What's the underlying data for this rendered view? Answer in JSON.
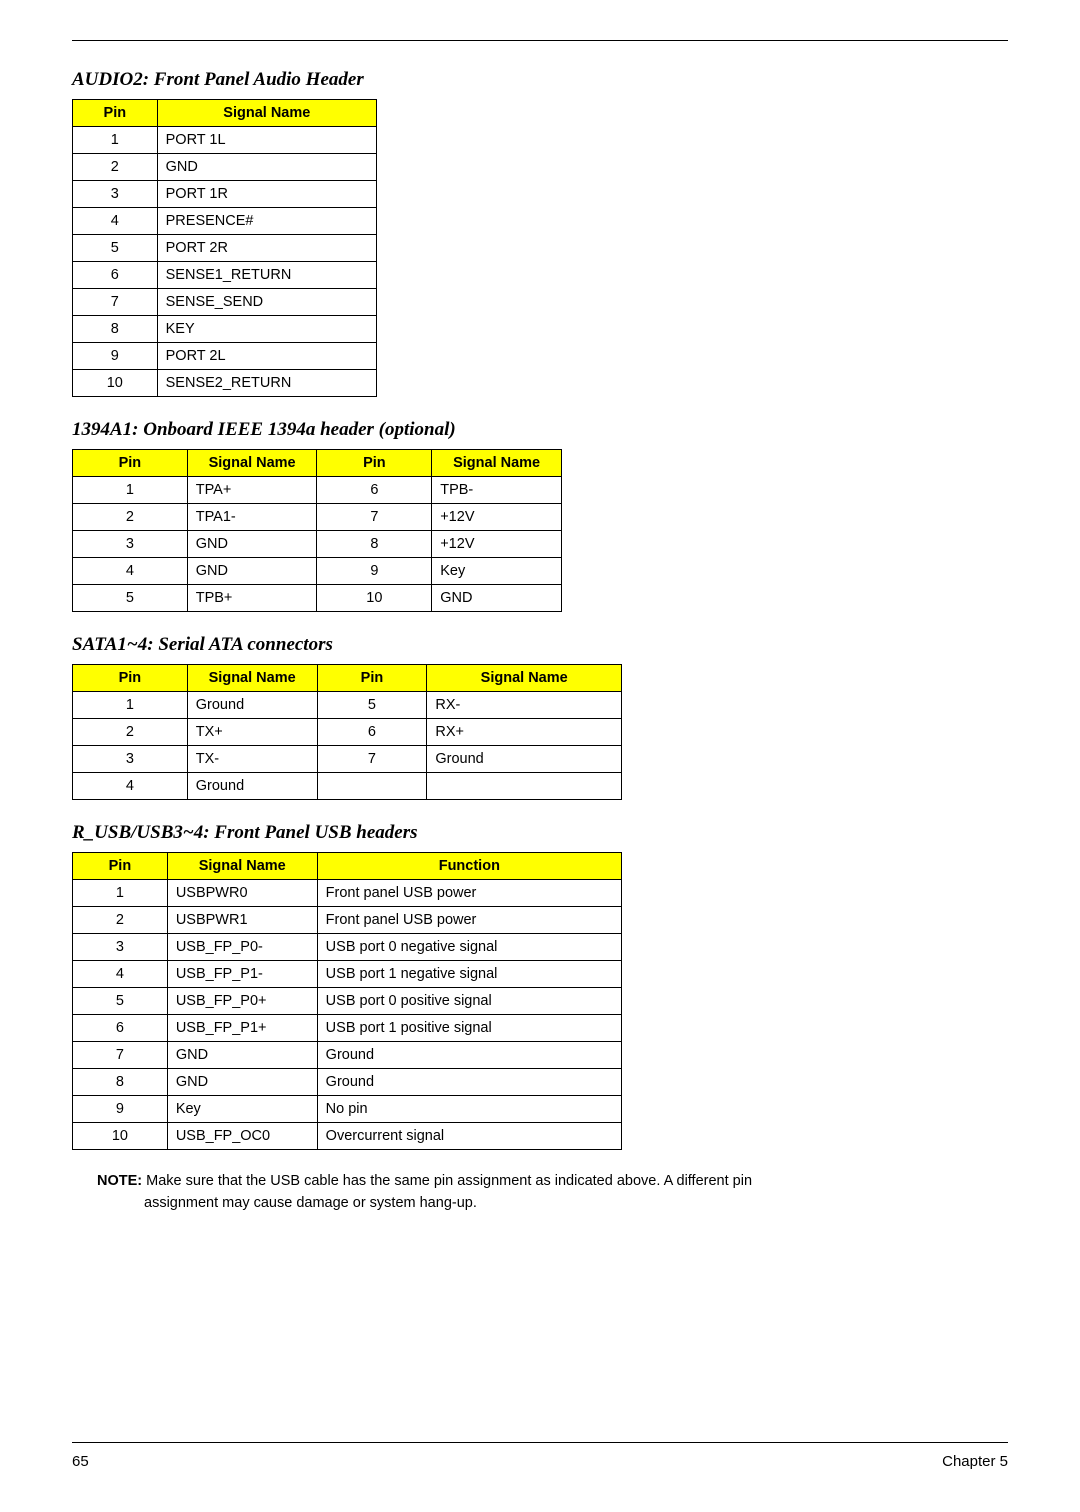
{
  "colors": {
    "header_bg": "#ffff00",
    "border": "#000000",
    "text": "#000000",
    "background": "#ffffff"
  },
  "sections": {
    "audio2": {
      "title": "AUDIO2: Front Panel Audio Header",
      "columns": [
        "Pin",
        "Signal Name"
      ],
      "rows": [
        {
          "pin": "1",
          "signal": "PORT 1L"
        },
        {
          "pin": "2",
          "signal": "GND"
        },
        {
          "pin": "3",
          "signal": "PORT 1R"
        },
        {
          "pin": "4",
          "signal": "PRESENCE#"
        },
        {
          "pin": "5",
          "signal": "PORT 2R"
        },
        {
          "pin": "6",
          "signal": "SENSE1_RETURN"
        },
        {
          "pin": "7",
          "signal": "SENSE_SEND"
        },
        {
          "pin": "8",
          "signal": "KEY"
        },
        {
          "pin": "9",
          "signal": "PORT 2L"
        },
        {
          "pin": "10",
          "signal": "SENSE2_RETURN"
        }
      ]
    },
    "ieee1394": {
      "title": "1394A1: Onboard IEEE 1394a header (optional)",
      "columns": [
        "Pin",
        "Signal Name",
        "Pin",
        "Signal Name"
      ],
      "rows": [
        {
          "pin1": "1",
          "sig1": "TPA+",
          "pin2": "6",
          "sig2": "TPB-"
        },
        {
          "pin1": "2",
          "sig1": "TPA1-",
          "pin2": "7",
          "sig2": "+12V"
        },
        {
          "pin1": "3",
          "sig1": "GND",
          "pin2": "8",
          "sig2": "+12V"
        },
        {
          "pin1": "4",
          "sig1": "GND",
          "pin2": "9",
          "sig2": "Key"
        },
        {
          "pin1": "5",
          "sig1": "TPB+",
          "pin2": "10",
          "sig2": "GND"
        }
      ]
    },
    "sata": {
      "title": "SATA1~4: Serial ATA connectors",
      "columns": [
        "Pin",
        "Signal Name",
        "Pin",
        "Signal Name"
      ],
      "rows": [
        {
          "pin1": "1",
          "sig1": "Ground",
          "pin2": "5",
          "sig2": "RX-"
        },
        {
          "pin1": "2",
          "sig1": "TX+",
          "pin2": "6",
          "sig2": "RX+"
        },
        {
          "pin1": "3",
          "sig1": "TX-",
          "pin2": "7",
          "sig2": "Ground"
        },
        {
          "pin1": "4",
          "sig1": "Ground",
          "pin2": "",
          "sig2": ""
        }
      ]
    },
    "usb": {
      "title": "R_USB/USB3~4: Front Panel USB headers",
      "columns": [
        "Pin",
        "Signal Name",
        "Function"
      ],
      "rows": [
        {
          "pin": "1",
          "signal": "USBPWR0",
          "fn": "Front panel USB power"
        },
        {
          "pin": "2",
          "signal": "USBPWR1",
          "fn": "Front panel USB power"
        },
        {
          "pin": "3",
          "signal": "USB_FP_P0-",
          "fn": "USB port 0 negative signal"
        },
        {
          "pin": "4",
          "signal": "USB_FP_P1-",
          "fn": "USB port 1 negative signal"
        },
        {
          "pin": "5",
          "signal": "USB_FP_P0+",
          "fn": "USB port 0 positive signal"
        },
        {
          "pin": "6",
          "signal": "USB_FP_P1+",
          "fn": "USB port 1 positive signal"
        },
        {
          "pin": "7",
          "signal": "GND",
          "fn": "Ground"
        },
        {
          "pin": "8",
          "signal": "GND",
          "fn": "Ground"
        },
        {
          "pin": "9",
          "signal": "Key",
          "fn": "No pin"
        },
        {
          "pin": "10",
          "signal": "USB_FP_OC0",
          "fn": "Overcurrent signal"
        }
      ],
      "note_label": "NOTE:",
      "note_text": " Make sure that the USB cable has the same pin assignment as indicated above. A different pin",
      "note_text2": "assignment may cause damage or system hang-up."
    }
  },
  "footer": {
    "page_number": "65",
    "chapter": "Chapter 5"
  }
}
